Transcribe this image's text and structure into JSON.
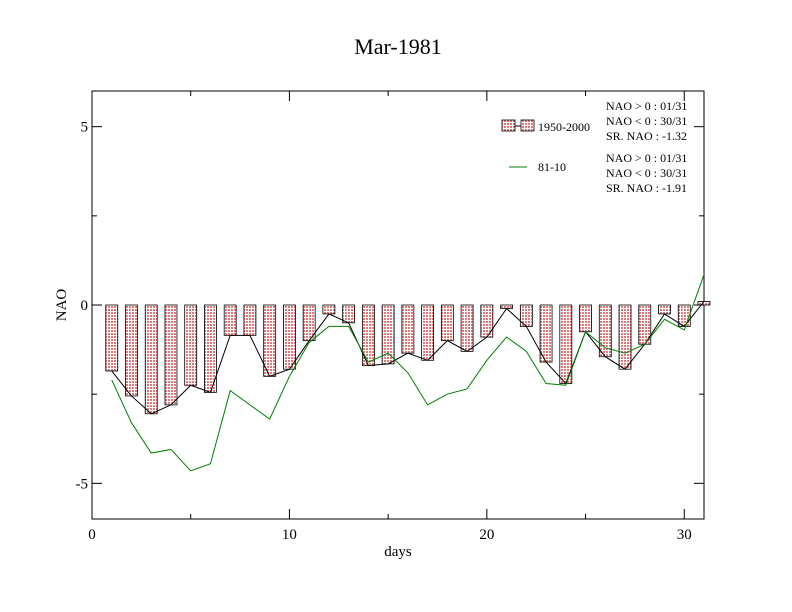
{
  "chart_data": {
    "type": "bar",
    "title": "Mar-1981",
    "xlabel": "days",
    "ylabel": "NAO",
    "xlim": [
      0,
      31
    ],
    "ylim": [
      -6,
      6
    ],
    "x_ticks": [
      0,
      10,
      20,
      30
    ],
    "y_ticks": [
      -5,
      0,
      5
    ],
    "x": [
      1,
      2,
      3,
      4,
      5,
      6,
      7,
      8,
      9,
      10,
      11,
      12,
      13,
      14,
      15,
      16,
      17,
      18,
      19,
      20,
      21,
      22,
      23,
      24,
      25,
      26,
      27,
      28,
      29,
      30,
      31
    ],
    "series": [
      {
        "name": "1950-2000",
        "kind": "bar",
        "color": "#e8a0a0",
        "values": [
          -1.85,
          -2.55,
          -3.05,
          -2.8,
          -2.25,
          -2.45,
          -0.85,
          -0.85,
          -2.0,
          -1.8,
          -1.0,
          -0.25,
          -0.5,
          -1.7,
          -1.65,
          -1.35,
          -1.55,
          -1.0,
          -1.3,
          -0.9,
          -0.1,
          -0.6,
          -1.6,
          -2.2,
          -0.75,
          -1.45,
          -1.8,
          -1.1,
          -0.25,
          -0.6,
          0.1
        ]
      },
      {
        "name": "81-10",
        "kind": "line",
        "color": "#008000",
        "values": [
          -2.1,
          -3.3,
          -4.15,
          -4.05,
          -4.65,
          -4.45,
          -2.4,
          -2.8,
          -3.2,
          -2.0,
          -1.05,
          -0.6,
          -0.6,
          -1.6,
          -1.35,
          -1.9,
          -2.8,
          -2.5,
          -2.35,
          -1.55,
          -0.9,
          -1.3,
          -2.2,
          -2.25,
          -0.75,
          -1.2,
          -1.35,
          -1.1,
          -0.4,
          -0.7,
          0.85
        ]
      }
    ],
    "legend": [
      {
        "label": "1950-2000",
        "stats": [
          "NAO > 0 : 01/31",
          "NAO < 0 : 30/31",
          "SR. NAO : -1.32"
        ]
      },
      {
        "label": "81-10",
        "stats": [
          "NAO > 0 : 01/31",
          "NAO < 0 : 30/31",
          "SR. NAO : -1.91"
        ]
      }
    ],
    "legend_position": "top-right",
    "grid": false
  }
}
